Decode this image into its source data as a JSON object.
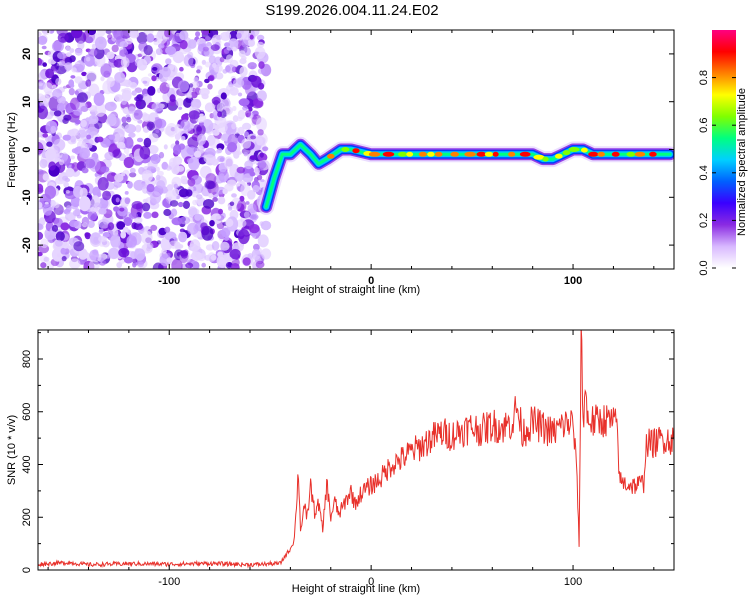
{
  "figure": {
    "title": "S199.2026.004.11.24.E02"
  },
  "chart_data": [
    {
      "type": "heatmap",
      "title": "",
      "xlabel": "Height of straight line (km)",
      "ylabel": "Frequency (Hz)",
      "xlim": [
        -165,
        150
      ],
      "ylim": [
        -25,
        25
      ],
      "xticks": [
        -100,
        0,
        100
      ],
      "yticks": [
        -20,
        -10,
        0,
        10,
        20
      ],
      "colorbar": {
        "label": "Normalized spectral amplitude",
        "range": [
          0,
          1
        ],
        "ticks": [
          0.0,
          0.2,
          0.4,
          0.6,
          0.8
        ],
        "tick_labels": [
          "0.0",
          "0.2",
          "0.4",
          "0.6",
          "0.8"
        ],
        "colormap": [
          "#ffffff",
          "#d8b8ff",
          "#8a2be2",
          "#3a00ff",
          "#0060ff",
          "#00d0ff",
          "#00ff80",
          "#80ff00",
          "#ffff00",
          "#ff8000",
          "#ff0000",
          "#ff0080"
        ]
      },
      "noise_region": {
        "x_range": [
          -165,
          -52
        ],
        "freq_range": [
          -25,
          25
        ]
      },
      "signal_ridge": {
        "x": [
          -52,
          -48,
          -44,
          -40,
          -35,
          -30,
          -26,
          -22,
          -15,
          -10,
          0,
          10,
          20,
          30,
          40,
          50,
          60,
          70,
          80,
          85,
          90,
          95,
          100,
          105,
          110,
          120,
          130,
          140,
          148
        ],
        "freq": [
          -12,
          -6,
          -1,
          -1,
          1,
          -1,
          -3,
          -2,
          0,
          0,
          -1,
          -1,
          -1,
          -1,
          -1,
          -1,
          -1,
          -1,
          -1,
          -2,
          -2,
          -1,
          0,
          0,
          -1,
          -1,
          -1,
          -1,
          -1
        ]
      }
    },
    {
      "type": "line",
      "title": "",
      "xlabel": "Height of straight line (km)",
      "ylabel": "SNR (10 * v/v)",
      "xlim": [
        -165,
        150
      ],
      "ylim": [
        0,
        910
      ],
      "xticks": [
        -100,
        0,
        100
      ],
      "yticks": [
        0,
        200,
        400,
        600,
        800
      ],
      "series": [
        {
          "name": "SNR",
          "color": "#e8312b",
          "x": [
            -165,
            -150,
            -140,
            -120,
            -100,
            -80,
            -60,
            -45,
            -42,
            -40,
            -38,
            -36,
            -35,
            -34,
            -33,
            -32,
            -30,
            -28,
            -26,
            -24,
            -22,
            -20,
            -18,
            -16,
            -14,
            -12,
            -10,
            -8,
            -5,
            -2,
            0,
            5,
            10,
            15,
            20,
            25,
            30,
            35,
            40,
            45,
            50,
            55,
            60,
            65,
            70,
            72,
            75,
            80,
            85,
            90,
            95,
            100,
            102,
            103,
            104,
            105,
            106,
            107,
            110,
            115,
            120,
            122,
            123,
            125,
            130,
            135,
            136,
            137,
            140,
            145,
            150
          ],
          "y": [
            22,
            28,
            20,
            24,
            22,
            25,
            20,
            25,
            60,
            80,
            120,
            380,
            150,
            200,
            250,
            180,
            320,
            220,
            250,
            150,
            330,
            200,
            260,
            210,
            240,
            270,
            300,
            250,
            290,
            310,
            320,
            350,
            400,
            420,
            450,
            470,
            500,
            520,
            510,
            530,
            540,
            530,
            550,
            540,
            560,
            620,
            520,
            560,
            540,
            520,
            550,
            560,
            350,
            90,
            920,
            560,
            700,
            580,
            560,
            570,
            560,
            540,
            340,
            330,
            320,
            330,
            470,
            480,
            480,
            500,
            490
          ]
        }
      ]
    }
  ]
}
